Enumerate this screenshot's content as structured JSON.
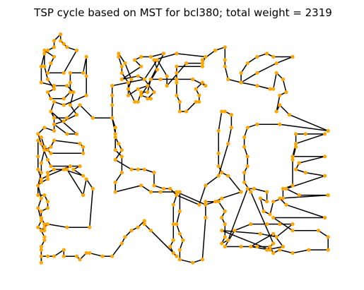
{
  "chart_data": {
    "type": "scatter",
    "title": "TSP cycle based on MST for bcl380; total weight = 2319",
    "xlabel": "",
    "ylabel": "",
    "axes_visible": false,
    "grid": false,
    "xlim": [
      0,
      100
    ],
    "ylim": [
      0,
      75
    ],
    "node_color": "#ffa500",
    "edge_color": "#000000",
    "tour": [
      [
        17,
        69
      ],
      [
        13,
        62
      ],
      [
        8,
        62
      ],
      [
        9,
        65
      ],
      [
        10,
        67
      ],
      [
        7,
        69
      ],
      [
        7,
        64
      ],
      [
        8,
        60
      ],
      [
        10,
        57
      ],
      [
        8,
        56
      ],
      [
        9,
        54
      ],
      [
        13,
        54
      ],
      [
        15,
        56
      ],
      [
        15,
        59
      ],
      [
        15,
        62
      ],
      [
        19,
        62
      ],
      [
        20,
        67
      ],
      [
        20,
        61
      ],
      [
        20,
        55
      ],
      [
        13,
        52
      ],
      [
        10,
        53
      ],
      [
        9,
        50
      ],
      [
        10,
        48
      ],
      [
        14,
        48
      ],
      [
        18,
        52
      ],
      [
        22,
        48
      ],
      [
        28,
        48
      ],
      [
        29,
        43
      ],
      [
        29,
        38
      ],
      [
        31,
        36
      ],
      [
        31,
        31
      ],
      [
        29,
        28
      ],
      [
        29,
        25
      ],
      [
        37,
        27
      ],
      [
        40,
        25
      ],
      [
        43,
        25
      ],
      [
        49,
        25
      ],
      [
        49,
        19
      ],
      [
        48,
        15
      ],
      [
        49,
        12
      ],
      [
        50,
        10
      ],
      [
        49,
        7
      ],
      [
        49,
        4
      ],
      [
        53,
        3
      ],
      [
        56,
        4
      ],
      [
        57,
        17
      ],
      [
        57,
        22
      ],
      [
        61,
        22
      ],
      [
        63,
        19
      ],
      [
        62,
        17
      ],
      [
        63,
        15
      ],
      [
        63,
        11
      ],
      [
        62,
        9
      ],
      [
        64,
        10
      ],
      [
        70,
        26
      ],
      [
        72,
        26
      ],
      [
        76,
        25
      ],
      [
        76,
        22
      ],
      [
        74,
        23
      ],
      [
        75,
        19
      ],
      [
        77,
        18
      ],
      [
        78,
        22
      ],
      [
        81,
        23
      ],
      [
        81,
        26
      ],
      [
        84,
        27
      ],
      [
        84,
        35
      ],
      [
        85,
        39
      ],
      [
        85,
        43
      ],
      [
        88,
        43
      ],
      [
        94,
        43
      ],
      [
        85,
        40
      ],
      [
        84,
        36
      ],
      [
        94,
        36
      ],
      [
        86,
        34
      ],
      [
        85,
        32
      ],
      [
        88,
        31
      ],
      [
        94,
        30
      ],
      [
        82,
        26
      ],
      [
        86,
        24
      ],
      [
        95,
        24
      ],
      [
        80,
        23
      ],
      [
        82,
        21
      ],
      [
        94,
        17
      ],
      [
        78,
        17
      ],
      [
        84,
        13
      ],
      [
        92,
        13
      ],
      [
        95,
        11
      ],
      [
        95,
        7
      ],
      [
        89,
        7
      ],
      [
        84,
        6
      ],
      [
        80,
        7
      ],
      [
        78,
        6
      ],
      [
        77,
        8
      ],
      [
        73,
        8
      ],
      [
        68,
        8
      ],
      [
        63,
        8
      ],
      [
        66,
        13
      ],
      [
        71,
        15
      ],
      [
        76,
        15
      ],
      [
        80,
        15
      ],
      [
        84,
        15
      ],
      [
        79,
        11
      ],
      [
        74,
        12
      ],
      [
        62,
        13
      ],
      [
        77,
        7
      ],
      [
        71,
        8
      ],
      [
        78,
        12
      ],
      [
        81,
        8
      ],
      [
        76,
        7
      ],
      [
        78,
        9
      ],
      [
        71,
        25
      ],
      [
        69,
        28
      ],
      [
        69,
        31
      ],
      [
        70,
        33
      ],
      [
        70,
        36
      ],
      [
        69,
        39
      ],
      [
        69,
        42
      ],
      [
        70,
        45
      ],
      [
        73,
        46
      ],
      [
        80,
        46
      ],
      [
        95,
        44
      ],
      [
        83,
        49
      ],
      [
        80,
        52
      ],
      [
        79,
        50
      ],
      [
        80,
        55
      ],
      [
        82,
        56
      ],
      [
        81,
        60
      ],
      [
        79,
        62
      ],
      [
        78,
        57
      ],
      [
        77,
        57
      ],
      [
        73,
        58
      ],
      [
        68,
        59
      ],
      [
        68,
        62
      ],
      [
        70,
        65
      ],
      [
        73,
        67
      ],
      [
        76,
        68
      ],
      [
        78,
        67
      ],
      [
        84,
        67
      ],
      [
        79,
        65
      ],
      [
        73,
        62
      ],
      [
        68,
        59
      ],
      [
        64,
        60
      ],
      [
        63,
        64
      ],
      [
        63,
        66
      ],
      [
        63,
        70
      ],
      [
        60,
        69
      ],
      [
        56,
        66
      ],
      [
        56,
        64
      ],
      [
        48,
        64
      ],
      [
        48,
        62
      ],
      [
        48,
        59
      ],
      [
        48,
        55
      ],
      [
        49,
        53
      ],
      [
        49,
        50
      ],
      [
        51,
        50
      ],
      [
        54,
        53
      ],
      [
        55,
        53
      ],
      [
        55,
        55
      ],
      [
        54,
        57
      ],
      [
        56,
        59
      ],
      [
        57,
        58
      ],
      [
        53,
        60
      ],
      [
        48,
        60
      ],
      [
        43,
        60
      ],
      [
        40,
        60
      ],
      [
        39,
        58
      ],
      [
        36,
        57
      ],
      [
        33,
        55
      ],
      [
        33,
        59
      ],
      [
        31,
        62
      ],
      [
        31,
        64
      ],
      [
        30,
        67
      ],
      [
        30,
        68
      ],
      [
        32,
        65
      ],
      [
        34,
        60
      ],
      [
        33,
        57
      ],
      [
        35,
        53
      ],
      [
        36,
        53
      ],
      [
        37,
        56
      ],
      [
        39,
        56
      ],
      [
        40,
        60
      ],
      [
        44,
        68
      ],
      [
        40,
        67
      ],
      [
        37,
        67
      ],
      [
        35,
        66
      ],
      [
        37,
        64
      ],
      [
        31,
        60
      ],
      [
        36,
        61
      ],
      [
        38,
        60
      ],
      [
        41,
        56
      ],
      [
        39,
        54
      ],
      [
        40,
        54
      ],
      [
        37,
        55
      ],
      [
        39,
        58
      ],
      [
        42,
        63
      ],
      [
        41,
        66
      ],
      [
        48,
        68
      ],
      [
        57,
        67
      ],
      [
        56,
        65
      ],
      [
        51,
        65
      ],
      [
        45,
        58
      ],
      [
        45,
        61
      ],
      [
        42,
        66
      ],
      [
        38,
        60
      ],
      [
        28,
        58
      ],
      [
        28,
        55
      ],
      [
        28,
        52
      ],
      [
        28,
        48
      ],
      [
        29,
        45
      ],
      [
        29,
        42
      ],
      [
        30,
        40
      ],
      [
        31,
        38
      ],
      [
        29,
        35
      ],
      [
        34,
        32
      ],
      [
        36,
        32
      ],
      [
        38,
        32
      ],
      [
        41,
        31
      ],
      [
        41,
        27
      ],
      [
        44,
        26
      ],
      [
        46,
        26
      ],
      [
        48,
        24
      ],
      [
        55,
        21
      ],
      [
        57,
        27
      ],
      [
        61,
        30
      ],
      [
        64,
        40
      ],
      [
        65,
        45
      ],
      [
        65,
        49
      ],
      [
        63,
        50
      ],
      [
        62,
        50
      ],
      [
        61,
        44
      ],
      [
        61,
        37
      ],
      [
        61,
        33
      ],
      [
        62,
        31
      ],
      [
        64,
        30
      ],
      [
        68,
        25
      ],
      [
        62,
        23
      ],
      [
        60,
        22
      ],
      [
        57,
        21
      ],
      [
        48,
        25
      ],
      [
        48,
        24
      ],
      [
        47,
        21
      ],
      [
        47,
        15
      ],
      [
        47,
        10
      ],
      [
        46,
        8
      ],
      [
        47,
        6
      ],
      [
        48,
        5
      ],
      [
        40,
        13
      ],
      [
        38,
        15
      ],
      [
        38,
        16
      ],
      [
        36,
        14
      ],
      [
        34,
        13
      ],
      [
        32,
        11
      ],
      [
        31,
        9
      ],
      [
        28,
        5
      ],
      [
        25,
        5
      ],
      [
        21,
        6
      ],
      [
        20,
        6
      ],
      [
        18,
        4
      ],
      [
        17,
        5
      ],
      [
        13,
        5
      ],
      [
        13,
        7
      ],
      [
        10,
        5
      ],
      [
        8,
        5
      ],
      [
        6,
        5
      ],
      [
        6,
        3
      ],
      [
        6,
        7
      ],
      [
        6,
        8
      ],
      [
        7,
        10
      ],
      [
        7,
        11
      ],
      [
        6,
        13
      ],
      [
        7,
        14
      ],
      [
        8,
        15
      ],
      [
        14,
        14
      ],
      [
        21,
        14
      ],
      [
        22,
        26
      ],
      [
        20,
        29
      ],
      [
        19,
        24
      ],
      [
        14,
        32
      ],
      [
        10,
        32
      ],
      [
        8,
        31
      ],
      [
        8,
        29
      ],
      [
        6,
        28
      ],
      [
        5,
        27
      ],
      [
        5,
        24
      ],
      [
        7,
        24
      ],
      [
        8,
        22
      ],
      [
        8,
        20
      ],
      [
        6,
        19
      ],
      [
        6,
        17
      ],
      [
        7,
        15
      ],
      [
        7,
        13
      ],
      [
        5,
        14
      ],
      [
        6,
        16
      ],
      [
        5,
        20
      ],
      [
        6,
        23
      ],
      [
        5,
        27
      ],
      [
        6,
        31
      ],
      [
        6,
        34
      ],
      [
        7,
        38
      ],
      [
        9,
        39
      ],
      [
        10,
        41
      ],
      [
        18,
        40
      ],
      [
        19,
        39
      ],
      [
        19,
        37
      ],
      [
        9,
        37
      ],
      [
        8,
        38
      ],
      [
        7,
        39
      ],
      [
        6,
        42
      ],
      [
        5,
        41
      ],
      [
        5,
        36
      ],
      [
        5,
        32
      ],
      [
        6,
        29
      ],
      [
        8,
        30
      ],
      [
        15,
        33
      ],
      [
        13,
        32
      ],
      [
        19,
        30
      ],
      [
        16,
        32
      ],
      [
        18,
        33
      ],
      [
        9,
        33
      ],
      [
        8,
        35
      ],
      [
        6,
        40
      ],
      [
        5,
        43
      ],
      [
        7,
        45
      ],
      [
        10,
        44
      ],
      [
        10,
        48
      ],
      [
        9,
        50
      ],
      [
        17,
        43
      ],
      [
        14,
        43
      ],
      [
        10,
        46
      ],
      [
        13,
        47
      ],
      [
        17,
        49
      ],
      [
        15,
        52
      ],
      [
        16,
        56
      ],
      [
        14,
        58
      ],
      [
        10,
        58
      ],
      [
        6,
        59
      ],
      [
        6,
        64
      ],
      [
        7,
        68
      ],
      [
        8,
        69
      ],
      [
        10,
        70
      ],
      [
        10,
        72
      ],
      [
        12,
        74
      ],
      [
        12,
        72
      ],
      [
        13,
        71
      ],
      [
        14,
        70
      ],
      [
        17,
        69
      ]
    ]
  }
}
